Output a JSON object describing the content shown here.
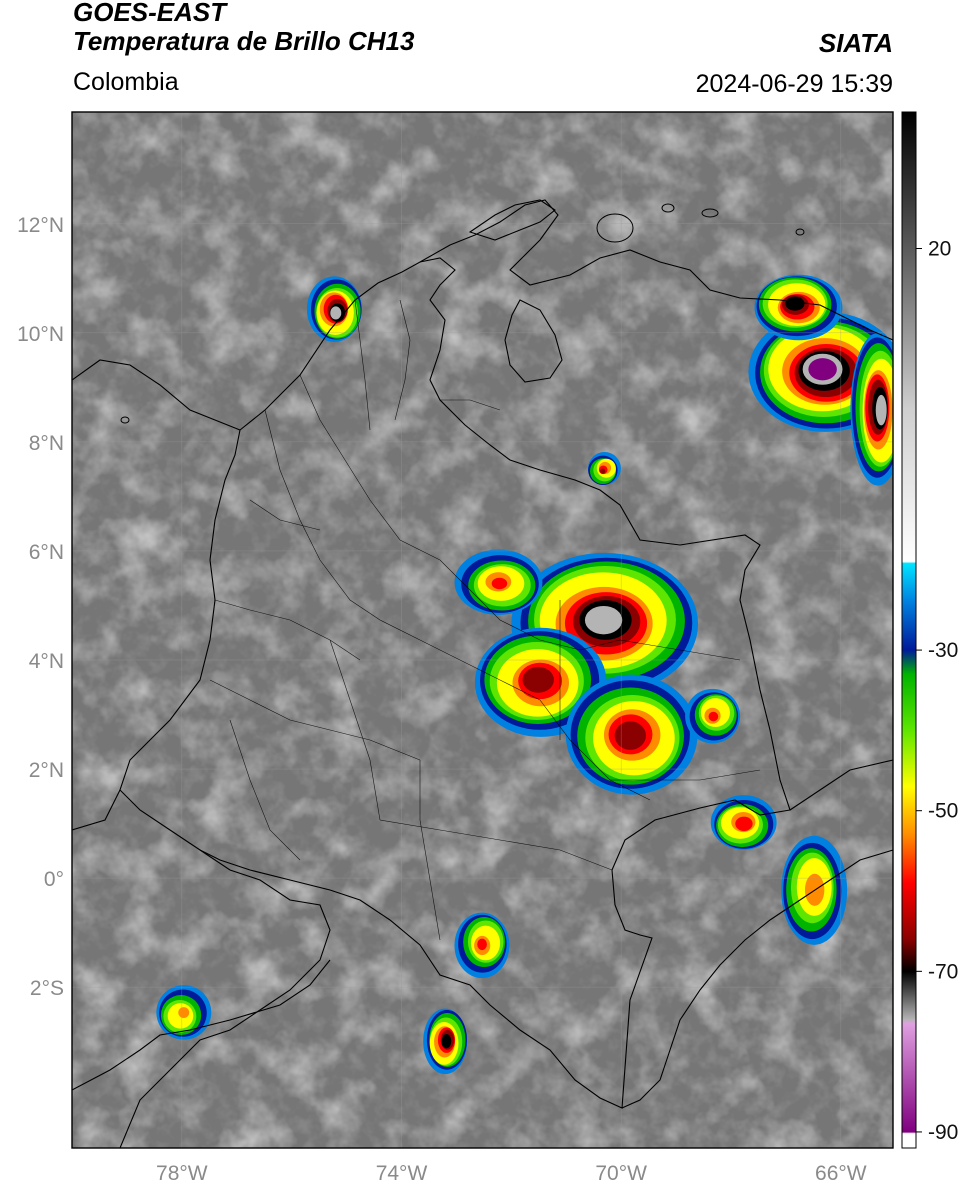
{
  "header": {
    "satellite": "GOES-EAST",
    "product": "Temperatura de Brillo CH13",
    "region": "Colombia",
    "organization": "SIATA",
    "datetime": "2024-06-29 15:39"
  },
  "map": {
    "lat_range": [
      -4.95,
      14.05
    ],
    "lon_range": [
      -80.0,
      -65.05
    ],
    "lat_ticks": [
      {
        "value": 12,
        "label": "12°N"
      },
      {
        "value": 10,
        "label": "10°N"
      },
      {
        "value": 8,
        "label": "8°N"
      },
      {
        "value": 6,
        "label": "6°N"
      },
      {
        "value": 4,
        "label": "4°N"
      },
      {
        "value": 2,
        "label": "2°N"
      },
      {
        "value": 0,
        "label": "0°"
      },
      {
        "value": -2,
        "label": "2°S"
      }
    ],
    "lon_ticks": [
      {
        "value": -78,
        "label": "78°W"
      },
      {
        "value": -74,
        "label": "74°W"
      },
      {
        "value": -70,
        "label": "70°W"
      },
      {
        "value": -66,
        "label": "66°W"
      }
    ],
    "storm_cells": [
      {
        "lat": 4.7,
        "lon": -70.3,
        "rlat": 1.3,
        "rlon": 1.7,
        "min_temp": -72
      },
      {
        "lat": 3.6,
        "lon": -71.5,
        "rlat": 1.0,
        "rlon": 1.2,
        "min_temp": -66
      },
      {
        "lat": 2.6,
        "lon": -69.8,
        "rlat": 1.1,
        "rlon": 1.2,
        "min_temp": -62
      },
      {
        "lat": 5.4,
        "lon": -72.2,
        "rlat": 0.6,
        "rlon": 0.8,
        "min_temp": -55
      },
      {
        "lat": 9.3,
        "lon": -66.3,
        "rlat": 1.1,
        "rlon": 1.4,
        "min_temp": -80
      },
      {
        "lat": 10.5,
        "lon": -66.8,
        "rlat": 0.6,
        "rlon": 0.8,
        "min_temp": -70
      },
      {
        "lat": 8.6,
        "lon": -65.3,
        "rlat": 1.4,
        "rlon": 0.5,
        "min_temp": -74
      },
      {
        "lat": 10.4,
        "lon": -75.2,
        "rlat": 0.6,
        "rlon": 0.5,
        "min_temp": -72
      },
      {
        "lat": 1.0,
        "lon": -67.8,
        "rlat": 0.5,
        "rlon": 0.6,
        "min_temp": -58
      },
      {
        "lat": -0.2,
        "lon": -66.5,
        "rlat": 1.0,
        "rlon": 0.6,
        "min_temp": -52
      },
      {
        "lat": -1.2,
        "lon": -72.5,
        "rlat": 0.6,
        "rlon": 0.5,
        "min_temp": -55
      },
      {
        "lat": -3.0,
        "lon": -73.2,
        "rlat": 0.6,
        "rlon": 0.4,
        "min_temp": -68
      },
      {
        "lat": -2.5,
        "lon": -78.0,
        "rlat": 0.5,
        "rlon": 0.5,
        "min_temp": -48
      },
      {
        "lat": 7.5,
        "lon": -70.3,
        "rlat": 0.3,
        "rlon": 0.3,
        "min_temp": -60
      },
      {
        "lat": 3.0,
        "lon": -68.3,
        "rlat": 0.5,
        "rlon": 0.5,
        "min_temp": -55
      }
    ]
  },
  "colorbar": {
    "ticks": [
      {
        "value": 20,
        "label": "20"
      },
      {
        "value": -30,
        "label": "-30"
      },
      {
        "value": -50,
        "label": "-50"
      },
      {
        "value": -70,
        "label": "-70"
      },
      {
        "value": -90,
        "label": "-90"
      }
    ],
    "min": -92,
    "max": 37,
    "stops": [
      {
        "value": 37,
        "color": "#000000"
      },
      {
        "value": 20,
        "color": "#5a5a5a"
      },
      {
        "value": 0,
        "color": "#cfcfcf"
      },
      {
        "value": -19,
        "color": "#ffffff"
      },
      {
        "value": -19.2,
        "color": "#00e5ff"
      },
      {
        "value": -24,
        "color": "#0080e0"
      },
      {
        "value": -30,
        "color": "#001a9a"
      },
      {
        "value": -33,
        "color": "#00b400"
      },
      {
        "value": -40,
        "color": "#5fe600"
      },
      {
        "value": -47,
        "color": "#ffff00"
      },
      {
        "value": -53,
        "color": "#ff8c00"
      },
      {
        "value": -59,
        "color": "#ff0000"
      },
      {
        "value": -66,
        "color": "#8b0000"
      },
      {
        "value": -70,
        "color": "#000000"
      },
      {
        "value": -76,
        "color": "#b4b4b4"
      },
      {
        "value": -76.5,
        "color": "#e0a0e0"
      },
      {
        "value": -90,
        "color": "#800080"
      },
      {
        "value": -90.2,
        "color": "#ffffff"
      },
      {
        "value": -92,
        "color": "#ffffff"
      }
    ]
  }
}
